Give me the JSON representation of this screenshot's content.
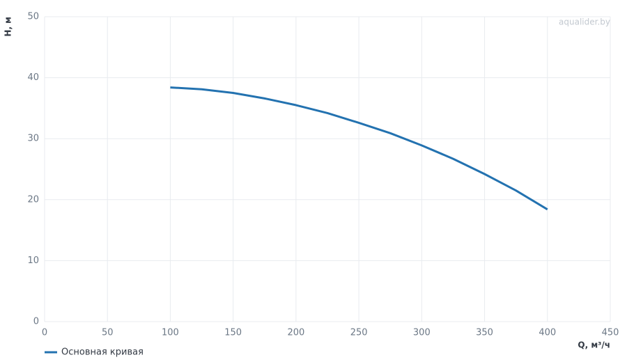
{
  "chart_data": {
    "type": "line",
    "watermark": "aqualider.by",
    "y_label": "H, м",
    "x_label": "Q, м³/ч",
    "x": [
      100,
      125,
      150,
      175,
      200,
      225,
      250,
      275,
      300,
      325,
      350,
      375,
      400
    ],
    "series": [
      {
        "name": "Основная кривая",
        "color": "#2372b0",
        "values": [
          38.4,
          38.1,
          37.5,
          36.6,
          35.5,
          34.2,
          32.6,
          30.9,
          28.9,
          26.7,
          24.2,
          21.5,
          18.4
        ]
      }
    ],
    "xlim": [
      0,
      450
    ],
    "xticks": [
      0,
      50,
      100,
      150,
      200,
      250,
      300,
      350,
      400,
      450
    ],
    "ylim": [
      0,
      50
    ],
    "yticks": [
      0,
      10,
      20,
      30,
      40,
      50
    ],
    "grid": true
  }
}
